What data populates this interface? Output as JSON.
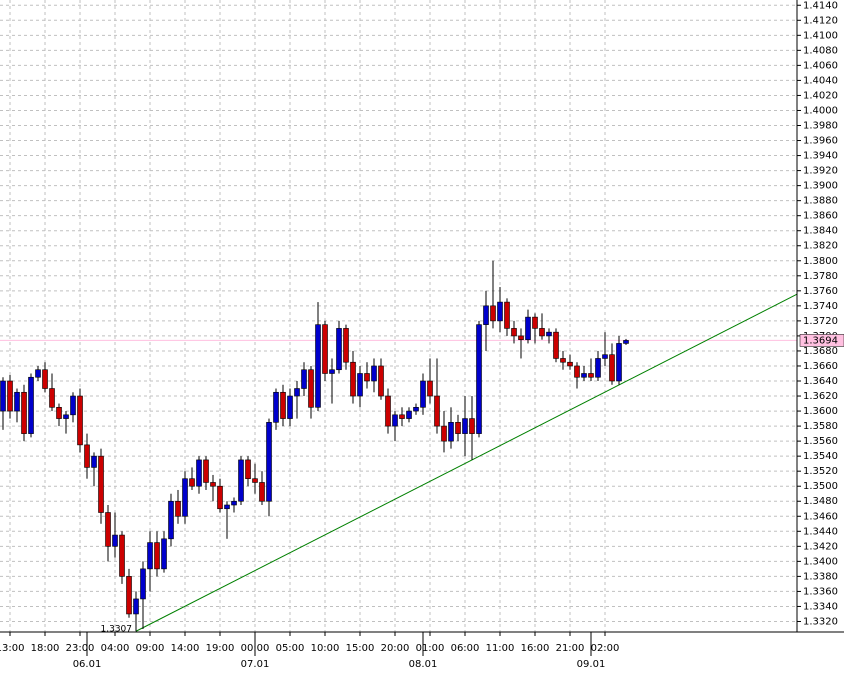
{
  "chart_data": {
    "type": "candlestick",
    "open": [
      1.36,
      1.364,
      1.36,
      1.3625,
      1.357,
      1.3645,
      1.3655,
      1.363,
      1.3605,
      1.359,
      1.3595,
      1.362,
      1.3555,
      1.3525,
      1.354,
      1.3465,
      1.342,
      1.3435,
      1.338,
      1.333,
      1.335,
      1.339,
      1.3425,
      1.339,
      1.343,
      1.348,
      1.346,
      1.351,
      1.35,
      1.3535,
      1.3505,
      1.35,
      1.347,
      1.3475,
      1.348,
      1.3535,
      1.351,
      1.3505,
      1.348,
      1.3585,
      1.3625,
      1.359,
      1.362,
      1.363,
      1.3655,
      1.3605,
      1.3715,
      1.365,
      1.3655,
      1.371,
      1.3665,
      1.362,
      1.365,
      1.364,
      1.366,
      1.362,
      1.358,
      1.3595,
      1.359,
      1.36,
      1.3605,
      1.364,
      1.362,
      1.358,
      1.356,
      1.3585,
      1.357,
      1.359,
      1.357,
      1.3715,
      1.374,
      1.372,
      1.3745,
      1.371,
      1.37,
      1.3695,
      1.3725,
      1.371,
      1.37,
      1.3705,
      1.367,
      1.3665,
      1.366,
      1.3645,
      1.365,
      1.3645,
      1.367,
      1.3675,
      1.364,
      1.369
    ],
    "high": [
      1.3645,
      1.3648,
      1.363,
      1.3635,
      1.365,
      1.366,
      1.3665,
      1.365,
      1.361,
      1.36,
      1.3625,
      1.363,
      1.357,
      1.3545,
      1.355,
      1.3475,
      1.3465,
      1.344,
      1.339,
      1.336,
      1.34,
      1.344,
      1.344,
      1.344,
      1.349,
      1.3495,
      1.352,
      1.3525,
      1.354,
      1.354,
      1.3515,
      1.351,
      1.348,
      1.3485,
      1.354,
      1.354,
      1.353,
      1.352,
      1.359,
      1.363,
      1.3635,
      1.363,
      1.364,
      1.3665,
      1.366,
      1.3745,
      1.372,
      1.367,
      1.372,
      1.3715,
      1.368,
      1.366,
      1.3665,
      1.367,
      1.367,
      1.363,
      1.36,
      1.3605,
      1.3605,
      1.361,
      1.365,
      1.367,
      1.367,
      1.36,
      1.3605,
      1.3595,
      1.362,
      1.362,
      1.372,
      1.376,
      1.38,
      1.3765,
      1.375,
      1.372,
      1.371,
      1.3735,
      1.373,
      1.373,
      1.371,
      1.371,
      1.368,
      1.3675,
      1.3665,
      1.366,
      1.367,
      1.368,
      1.3705,
      1.369,
      1.37,
      1.3696
    ],
    "low": [
      1.3575,
      1.359,
      1.3585,
      1.356,
      1.3565,
      1.364,
      1.3625,
      1.36,
      1.358,
      1.357,
      1.3585,
      1.3545,
      1.351,
      1.35,
      1.345,
      1.34,
      1.3405,
      1.337,
      1.3325,
      1.3307,
      1.331,
      1.336,
      1.338,
      1.3385,
      1.342,
      1.345,
      1.345,
      1.3495,
      1.349,
      1.3495,
      1.348,
      1.3465,
      1.343,
      1.3465,
      1.3475,
      1.35,
      1.349,
      1.3475,
      1.346,
      1.3575,
      1.358,
      1.358,
      1.359,
      1.362,
      1.359,
      1.36,
      1.364,
      1.361,
      1.365,
      1.3655,
      1.361,
      1.3605,
      1.363,
      1.3625,
      1.3615,
      1.357,
      1.356,
      1.358,
      1.3585,
      1.3595,
      1.3595,
      1.361,
      1.357,
      1.3545,
      1.355,
      1.356,
      1.354,
      1.3535,
      1.3565,
      1.368,
      1.371,
      1.3705,
      1.37,
      1.369,
      1.367,
      1.369,
      1.369,
      1.3695,
      1.369,
      1.3665,
      1.3655,
      1.3655,
      1.363,
      1.364,
      1.364,
      1.364,
      1.366,
      1.3635,
      1.3635,
      1.3688
    ],
    "close": [
      1.364,
      1.36,
      1.3625,
      1.357,
      1.3645,
      1.3655,
      1.363,
      1.3605,
      1.359,
      1.3595,
      1.362,
      1.3555,
      1.3525,
      1.354,
      1.3465,
      1.342,
      1.3435,
      1.338,
      1.333,
      1.335,
      1.339,
      1.3425,
      1.339,
      1.343,
      1.348,
      1.346,
      1.351,
      1.35,
      1.3535,
      1.3505,
      1.35,
      1.347,
      1.3475,
      1.348,
      1.3535,
      1.351,
      1.3505,
      1.348,
      1.3585,
      1.3625,
      1.359,
      1.362,
      1.363,
      1.3655,
      1.3605,
      1.3715,
      1.365,
      1.3655,
      1.371,
      1.3665,
      1.362,
      1.365,
      1.364,
      1.366,
      1.362,
      1.358,
      1.3595,
      1.359,
      1.36,
      1.3605,
      1.364,
      1.362,
      1.358,
      1.356,
      1.3585,
      1.357,
      1.359,
      1.357,
      1.3715,
      1.374,
      1.372,
      1.3745,
      1.371,
      1.37,
      1.3695,
      1.3725,
      1.371,
      1.37,
      1.3705,
      1.367,
      1.3665,
      1.366,
      1.3645,
      1.365,
      1.3645,
      1.367,
      1.3675,
      1.364,
      1.369,
      1.3694
    ],
    "up_color": "#0000cc",
    "down_color": "#cc0000",
    "xlim": [
      -0.43,
      113.43
    ],
    "ylim": [
      1.3306,
      1.4147
    ],
    "xticks": [
      {
        "value": 1,
        "label": "13:00"
      },
      {
        "value": 6,
        "label": "18:00"
      },
      {
        "value": 11,
        "label": "23:00"
      },
      {
        "value": 16,
        "label": "04:00"
      },
      {
        "value": 21,
        "label": "09:00"
      },
      {
        "value": 26,
        "label": "14:00"
      },
      {
        "value": 31,
        "label": "19:00"
      },
      {
        "value": 36,
        "label": "00:00"
      },
      {
        "value": 41,
        "label": "05:00"
      },
      {
        "value": 46,
        "label": "10:00"
      },
      {
        "value": 51,
        "label": "15:00"
      },
      {
        "value": 56,
        "label": "20:00"
      },
      {
        "value": 61,
        "label": "01:00"
      },
      {
        "value": 66,
        "label": "06:00"
      },
      {
        "value": 71,
        "label": "11:00"
      },
      {
        "value": 76,
        "label": "16:00"
      },
      {
        "value": 81,
        "label": "21:00"
      },
      {
        "value": 86,
        "label": "02:00"
      }
    ],
    "date_ticks": [
      {
        "value": 12,
        "label": "06.01"
      },
      {
        "value": 36,
        "label": "07.01"
      },
      {
        "value": 60,
        "label": "08.01"
      },
      {
        "value": 84,
        "label": "09.01"
      }
    ],
    "yticks": [
      {
        "value": 1.332,
        "label": "1.3320"
      },
      {
        "value": 1.334,
        "label": "1.3340"
      },
      {
        "value": 1.336,
        "label": "1.3360"
      },
      {
        "value": 1.338,
        "label": "1.3380"
      },
      {
        "value": 1.34,
        "label": "1.3400"
      },
      {
        "value": 1.342,
        "label": "1.3420"
      },
      {
        "value": 1.344,
        "label": "1.3440"
      },
      {
        "value": 1.346,
        "label": "1.3460"
      },
      {
        "value": 1.348,
        "label": "1.3480"
      },
      {
        "value": 1.35,
        "label": "1.3500"
      },
      {
        "value": 1.352,
        "label": "1.3520"
      },
      {
        "value": 1.354,
        "label": "1.3540"
      },
      {
        "value": 1.356,
        "label": "1.3560"
      },
      {
        "value": 1.358,
        "label": "1.3580"
      },
      {
        "value": 1.36,
        "label": "1.3600"
      },
      {
        "value": 1.362,
        "label": "1.3620"
      },
      {
        "value": 1.364,
        "label": "1.3640"
      },
      {
        "value": 1.366,
        "label": "1.3660"
      },
      {
        "value": 1.368,
        "label": "1.3680"
      },
      {
        "value": 1.37,
        "label": "1.3700"
      },
      {
        "value": 1.372,
        "label": "1.3720"
      },
      {
        "value": 1.374,
        "label": "1.3740"
      },
      {
        "value": 1.376,
        "label": "1.3760"
      },
      {
        "value": 1.378,
        "label": "1.3780"
      },
      {
        "value": 1.38,
        "label": "1.3800"
      },
      {
        "value": 1.382,
        "label": "1.3820"
      },
      {
        "value": 1.384,
        "label": "1.3840"
      },
      {
        "value": 1.386,
        "label": "1.3860"
      },
      {
        "value": 1.388,
        "label": "1.3880"
      },
      {
        "value": 1.39,
        "label": "1.3900"
      },
      {
        "value": 1.392,
        "label": "1.3920"
      },
      {
        "value": 1.394,
        "label": "1.3940"
      },
      {
        "value": 1.396,
        "label": "1.3960"
      },
      {
        "value": 1.398,
        "label": "1.3980"
      },
      {
        "value": 1.4,
        "label": "1.4000"
      },
      {
        "value": 1.402,
        "label": "1.4020"
      },
      {
        "value": 1.404,
        "label": "1.4040"
      },
      {
        "value": 1.406,
        "label": "1.4060"
      },
      {
        "value": 1.408,
        "label": "1.4080"
      },
      {
        "value": 1.41,
        "label": "1.4100"
      },
      {
        "value": 1.412,
        "label": "1.4120"
      },
      {
        "value": 1.414,
        "label": "1.4140"
      }
    ],
    "grid": true,
    "last_price": 1.3694,
    "low_label": 1.3307,
    "trendline": {
      "x": [
        19,
        67
      ],
      "y": [
        1.3307,
        1.3535
      ],
      "color": "#008000"
    }
  }
}
